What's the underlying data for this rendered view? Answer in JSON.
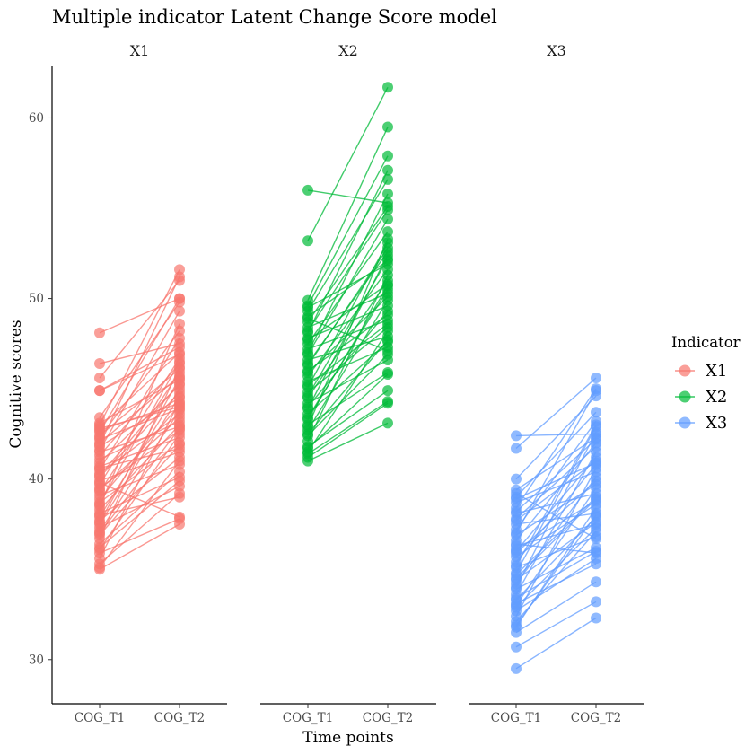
{
  "chart_data": {
    "type": "line",
    "title": "Multiple indicator Latent Change Score model",
    "xlabel": "Time points",
    "ylabel": "Cognitive scores",
    "ylim": [
      28,
      63
    ],
    "y_ticks": [
      30,
      40,
      50,
      60
    ],
    "x_categories": [
      "COG_T1",
      "COG_T2"
    ],
    "grid": false,
    "legend": {
      "title": "Indicator",
      "position": "right"
    },
    "panels": [
      {
        "name": "X1",
        "color": "#F8766D",
        "pairs": [
          [
            48.1,
            50.0
          ],
          [
            46.4,
            47.5
          ],
          [
            45.6,
            51.0
          ],
          [
            44.9,
            46.9
          ],
          [
            44.9,
            47.3
          ],
          [
            43.4,
            49.8
          ],
          [
            43.1,
            45.5
          ],
          [
            42.9,
            47.0
          ],
          [
            42.7,
            44.2
          ],
          [
            42.6,
            50.0
          ],
          [
            42.4,
            46.1
          ],
          [
            42.2,
            43.9
          ],
          [
            42.0,
            45.7
          ],
          [
            41.8,
            44.5
          ],
          [
            41.5,
            42.9
          ],
          [
            41.3,
            46.4
          ],
          [
            41.1,
            43.2
          ],
          [
            40.9,
            45.2
          ],
          [
            40.7,
            42.3
          ],
          [
            40.5,
            47.8
          ],
          [
            40.3,
            43.6
          ],
          [
            40.1,
            44.8
          ],
          [
            39.9,
            41.5
          ],
          [
            39.7,
            46.7
          ],
          [
            39.5,
            42.7
          ],
          [
            39.3,
            45.9
          ],
          [
            39.1,
            40.8
          ],
          [
            38.9,
            44.1
          ],
          [
            38.7,
            42.0
          ],
          [
            38.5,
            48.6
          ],
          [
            38.3,
            43.0
          ],
          [
            38.1,
            40.1
          ],
          [
            37.9,
            45.0
          ],
          [
            37.7,
            41.2
          ],
          [
            37.5,
            44.6
          ],
          [
            37.3,
            39.6
          ],
          [
            37.1,
            43.8
          ],
          [
            36.9,
            41.9
          ],
          [
            36.7,
            46.2
          ],
          [
            36.4,
            40.4
          ],
          [
            36.1,
            42.5
          ],
          [
            35.9,
            37.8
          ],
          [
            35.6,
            44.3
          ],
          [
            35.3,
            39.2
          ],
          [
            35.1,
            41.0
          ],
          [
            35.0,
            37.5
          ],
          [
            43.0,
            51.6
          ],
          [
            41.6,
            49.3
          ],
          [
            39.8,
            37.9
          ],
          [
            38.0,
            39.0
          ],
          [
            40.2,
            45.3
          ],
          [
            42.3,
            48.2
          ],
          [
            37.0,
            42.8
          ],
          [
            36.2,
            39.9
          ],
          [
            41.9,
            51.2
          ],
          [
            39.4,
            43.4
          ],
          [
            38.6,
            46.5
          ],
          [
            40.6,
            41.7
          ],
          [
            37.6,
            45.6
          ],
          [
            42.8,
            44.0
          ]
        ]
      },
      {
        "name": "X2",
        "color": "#00BA38",
        "pairs": [
          [
            56.0,
            55.3
          ],
          [
            53.2,
            61.7
          ],
          [
            49.9,
            59.5
          ],
          [
            49.6,
            57.9
          ],
          [
            49.3,
            56.6
          ],
          [
            49.0,
            52.1
          ],
          [
            48.7,
            55.1
          ],
          [
            48.4,
            50.3
          ],
          [
            48.1,
            57.1
          ],
          [
            47.8,
            49.6
          ],
          [
            47.5,
            53.7
          ],
          [
            47.2,
            48.8
          ],
          [
            46.9,
            54.4
          ],
          [
            46.6,
            47.9
          ],
          [
            46.3,
            52.8
          ],
          [
            46.0,
            49.1
          ],
          [
            45.7,
            51.6
          ],
          [
            45.4,
            47.3
          ],
          [
            45.1,
            53.1
          ],
          [
            44.8,
            48.4
          ],
          [
            44.5,
            51.0
          ],
          [
            44.2,
            46.6
          ],
          [
            43.9,
            52.4
          ],
          [
            43.6,
            47.6
          ],
          [
            43.3,
            50.7
          ],
          [
            43.0,
            45.9
          ],
          [
            42.7,
            49.9
          ],
          [
            42.4,
            46.9
          ],
          [
            42.1,
            51.3
          ],
          [
            41.8,
            44.9
          ],
          [
            41.5,
            48.2
          ],
          [
            41.2,
            44.2
          ],
          [
            41.0,
            43.1
          ],
          [
            49.5,
            51.9
          ],
          [
            48.9,
            47.1
          ],
          [
            47.0,
            55.8
          ],
          [
            45.9,
            50.1
          ],
          [
            44.0,
            49.3
          ],
          [
            42.9,
            53.3
          ],
          [
            41.7,
            45.8
          ],
          [
            46.4,
            52.6
          ],
          [
            43.4,
            50.5
          ],
          [
            48.2,
            54.9
          ],
          [
            45.2,
            48.6
          ],
          [
            42.5,
            47.7
          ],
          [
            47.7,
            50.8
          ],
          [
            44.6,
            52.2
          ],
          [
            41.4,
            44.3
          ]
        ]
      },
      {
        "name": "X3",
        "color": "#619CFF",
        "pairs": [
          [
            42.4,
            42.5
          ],
          [
            41.7,
            45.6
          ],
          [
            40.0,
            44.6
          ],
          [
            39.4,
            42.3
          ],
          [
            39.0,
            43.7
          ],
          [
            38.7,
            40.4
          ],
          [
            38.4,
            45.0
          ],
          [
            38.1,
            39.2
          ],
          [
            37.8,
            41.8
          ],
          [
            37.5,
            38.1
          ],
          [
            37.2,
            43.2
          ],
          [
            36.9,
            39.7
          ],
          [
            36.6,
            42.0
          ],
          [
            36.3,
            37.5
          ],
          [
            36.0,
            41.2
          ],
          [
            35.7,
            38.6
          ],
          [
            35.4,
            40.8
          ],
          [
            35.1,
            36.8
          ],
          [
            34.8,
            42.9
          ],
          [
            34.5,
            38.9
          ],
          [
            34.2,
            40.1
          ],
          [
            33.9,
            36.2
          ],
          [
            33.6,
            41.5
          ],
          [
            33.3,
            37.9
          ],
          [
            33.0,
            39.5
          ],
          [
            32.7,
            35.6
          ],
          [
            32.4,
            40.6
          ],
          [
            32.1,
            37.1
          ],
          [
            31.8,
            38.4
          ],
          [
            31.5,
            34.3
          ],
          [
            30.7,
            33.2
          ],
          [
            29.5,
            32.3
          ],
          [
            39.2,
            36.7
          ],
          [
            37.0,
            44.9
          ],
          [
            35.9,
            39.9
          ],
          [
            34.0,
            42.6
          ],
          [
            32.9,
            37.3
          ],
          [
            38.9,
            40.9
          ],
          [
            36.4,
            35.9
          ],
          [
            34.7,
            39.0
          ],
          [
            33.4,
            36.0
          ],
          [
            31.9,
            38.0
          ],
          [
            35.2,
            43.0
          ],
          [
            37.7,
            41.0
          ],
          [
            36.1,
            38.8
          ],
          [
            33.1,
            35.3
          ],
          [
            38.2,
            42.2
          ],
          [
            34.4,
            37.6
          ]
        ]
      }
    ]
  }
}
